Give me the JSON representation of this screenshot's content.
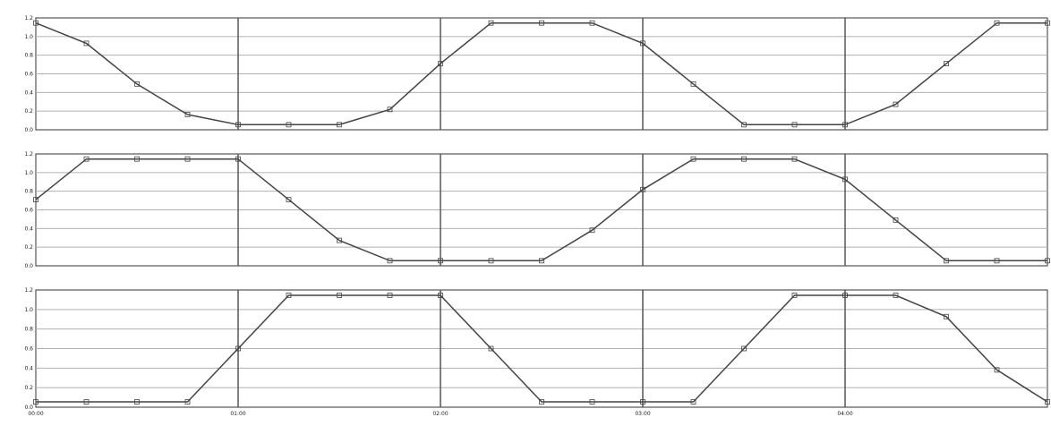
{
  "chart_data": [
    {
      "type": "line",
      "title": "",
      "y_ticks": [
        "1.2",
        "1.0",
        "0.8",
        "0.6",
        "0.4",
        "0.2",
        "0.0"
      ],
      "ylim": [
        -0.05,
        1.05
      ],
      "xlim": [
        0,
        1
      ],
      "grid": true,
      "x": [
        0.0,
        0.05,
        0.1,
        0.15,
        0.2,
        0.25,
        0.3,
        0.35,
        0.4,
        0.45,
        0.5,
        0.55,
        0.6,
        0.65,
        0.7,
        0.75,
        0.8,
        0.85,
        0.9,
        0.95,
        1.0
      ],
      "series": [
        {
          "color": "#444444",
          "values": [
            1.0,
            0.8,
            0.4,
            0.1,
            0.0,
            0.0,
            0.0,
            0.15,
            0.6,
            1.0,
            1.0,
            1.0,
            0.8,
            0.4,
            0.0,
            0.0,
            0.0,
            0.2,
            0.6,
            1.0,
            1.0
          ]
        }
      ]
    },
    {
      "type": "line",
      "title": "",
      "y_ticks": [
        "1.2",
        "1.0",
        "0.8",
        "0.6",
        "0.4",
        "0.2",
        "0.0"
      ],
      "ylim": [
        -0.05,
        1.05
      ],
      "xlim": [
        0,
        1
      ],
      "grid": true,
      "x": [
        0.0,
        0.05,
        0.1,
        0.15,
        0.2,
        0.25,
        0.3,
        0.35,
        0.4,
        0.45,
        0.5,
        0.55,
        0.6,
        0.65,
        0.7,
        0.75,
        0.8,
        0.85,
        0.9,
        0.95,
        1.0
      ],
      "series": [
        {
          "color": "#444444",
          "values": [
            0.6,
            1.0,
            1.0,
            1.0,
            1.0,
            0.6,
            0.2,
            0.0,
            0.0,
            0.0,
            0.0,
            0.3,
            0.7,
            1.0,
            1.0,
            1.0,
            0.8,
            0.4,
            0.0,
            0.0,
            0.0
          ]
        }
      ]
    },
    {
      "type": "line",
      "title": "",
      "y_ticks": [
        "1.2",
        "1.0",
        "0.8",
        "0.6",
        "0.4",
        "0.2",
        "0.0"
      ],
      "ylim": [
        -0.05,
        1.05
      ],
      "xlim": [
        0,
        1
      ],
      "grid": true,
      "x": [
        0.0,
        0.05,
        0.1,
        0.15,
        0.2,
        0.25,
        0.3,
        0.35,
        0.4,
        0.45,
        0.5,
        0.55,
        0.6,
        0.65,
        0.7,
        0.75,
        0.8,
        0.85,
        0.9,
        0.95,
        1.0
      ],
      "series": [
        {
          "color": "#444444",
          "values": [
            0.0,
            0.0,
            0.0,
            0.0,
            0.5,
            1.0,
            1.0,
            1.0,
            1.0,
            0.5,
            0.0,
            0.0,
            0.0,
            0.0,
            0.5,
            1.0,
            1.0,
            1.0,
            0.8,
            0.3,
            0.0
          ]
        }
      ]
    }
  ],
  "x_tick_labels": [
    "00:00",
    "01:00",
    "02:00",
    "03:00",
    "04:00",
    ""
  ],
  "footer": "",
  "colors": {
    "grid": "#b0b0b0",
    "axis": "#333333",
    "divider": "#555555"
  }
}
